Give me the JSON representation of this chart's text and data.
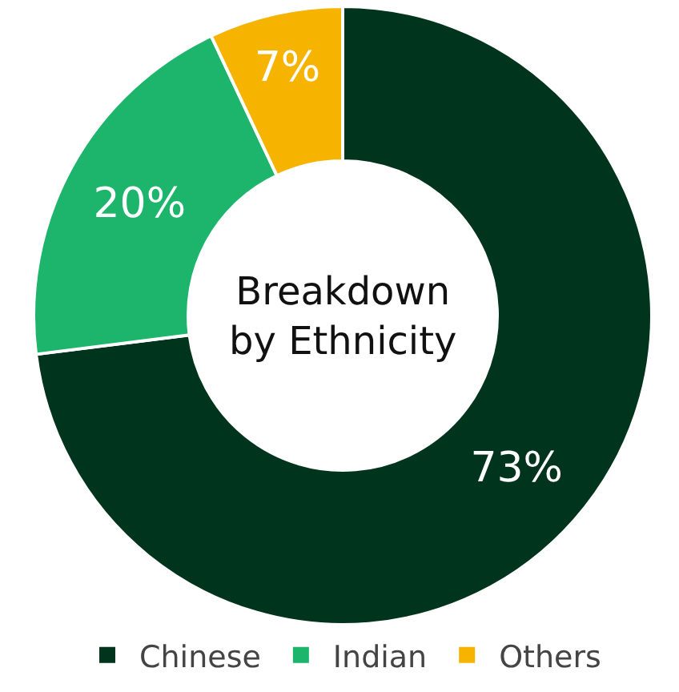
{
  "chart_data": {
    "type": "donut",
    "title": "Breakdown by Ethnicity",
    "categories": [
      "Chinese",
      "Indian",
      "Others"
    ],
    "values": [
      73,
      20,
      7
    ],
    "colors": [
      "#00341d",
      "#1db56b",
      "#f6b400"
    ],
    "value_labels": [
      "73%",
      "20%",
      "7%"
    ],
    "legend": "bottom"
  }
}
